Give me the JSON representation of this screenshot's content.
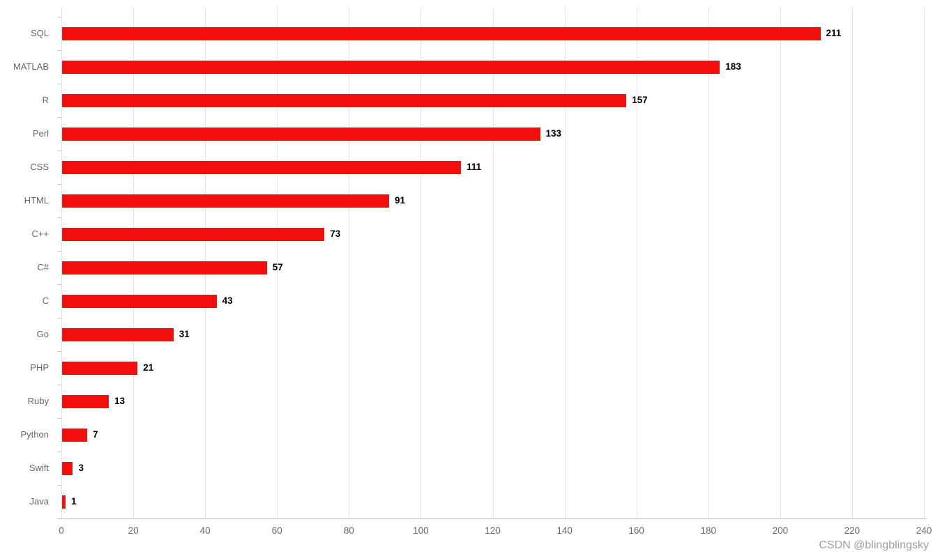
{
  "chart_data": {
    "type": "bar",
    "orientation": "horizontal",
    "title": "",
    "xlabel": "",
    "ylabel": "",
    "categories": [
      "SQL",
      "MATLAB",
      "R",
      "Perl",
      "CSS",
      "HTML",
      "C++",
      "C#",
      "C",
      "Go",
      "PHP",
      "Ruby",
      "Python",
      "Swift",
      "Java"
    ],
    "values": [
      211,
      183,
      157,
      133,
      111,
      91,
      73,
      57,
      43,
      31,
      21,
      13,
      7,
      3,
      1
    ],
    "xlim": [
      0,
      240
    ],
    "x_ticks": [
      0,
      20,
      40,
      60,
      80,
      100,
      120,
      140,
      160,
      180,
      200,
      220,
      240
    ],
    "grid": true,
    "legend_position": "none",
    "bar_color": "#f30e0e",
    "value_label_color": "#000000",
    "axis_text_color": "#666666",
    "gridline_color": "#e3e3e3"
  },
  "watermark": {
    "text": "CSDN @blingblingsky",
    "color": "#9aa0a6"
  }
}
